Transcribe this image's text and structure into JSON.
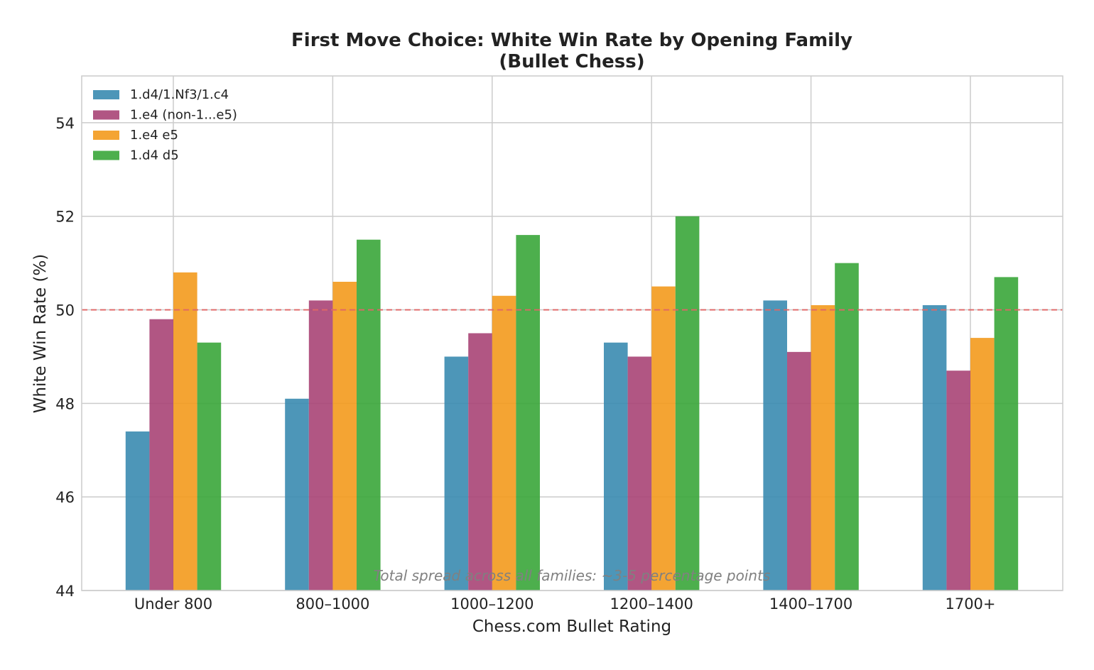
{
  "chart_data": {
    "type": "bar",
    "title": "First Move Choice: White Win Rate by Opening Family",
    "subtitle": "(Bullet Chess)",
    "xlabel": "Chess.com Bullet Rating",
    "ylabel": "White Win Rate (%)",
    "categories": [
      "Under 800",
      "800–1000",
      "1000–1200",
      "1200–1400",
      "1400–1700",
      "1700+"
    ],
    "ylim": [
      44,
      55
    ],
    "yticks": [
      44,
      46,
      48,
      50,
      52,
      54
    ],
    "grid": true,
    "legend_position": "top-left",
    "reference_line": {
      "y": 50,
      "color": "#e06666",
      "style": "dashed"
    },
    "annotation": "Total spread across all families: ~3-5 percentage points",
    "series": [
      {
        "name": "1.d4/1.Nf3/1.c4",
        "color": "#3a8bb0",
        "values": [
          47.4,
          48.1,
          49.0,
          49.3,
          50.2,
          50.1
        ]
      },
      {
        "name": "1.e4 (non-1...e5)",
        "color": "#a84476",
        "values": [
          49.8,
          50.2,
          49.5,
          49.0,
          49.1,
          48.7
        ]
      },
      {
        "name": "1.e4 e5",
        "color": "#f39a1d",
        "values": [
          50.8,
          50.6,
          50.3,
          50.5,
          50.1,
          49.4
        ]
      },
      {
        "name": "1.d4 d5",
        "color": "#3aa63a",
        "values": [
          49.3,
          51.5,
          51.6,
          52.0,
          51.0,
          50.7
        ]
      }
    ]
  }
}
